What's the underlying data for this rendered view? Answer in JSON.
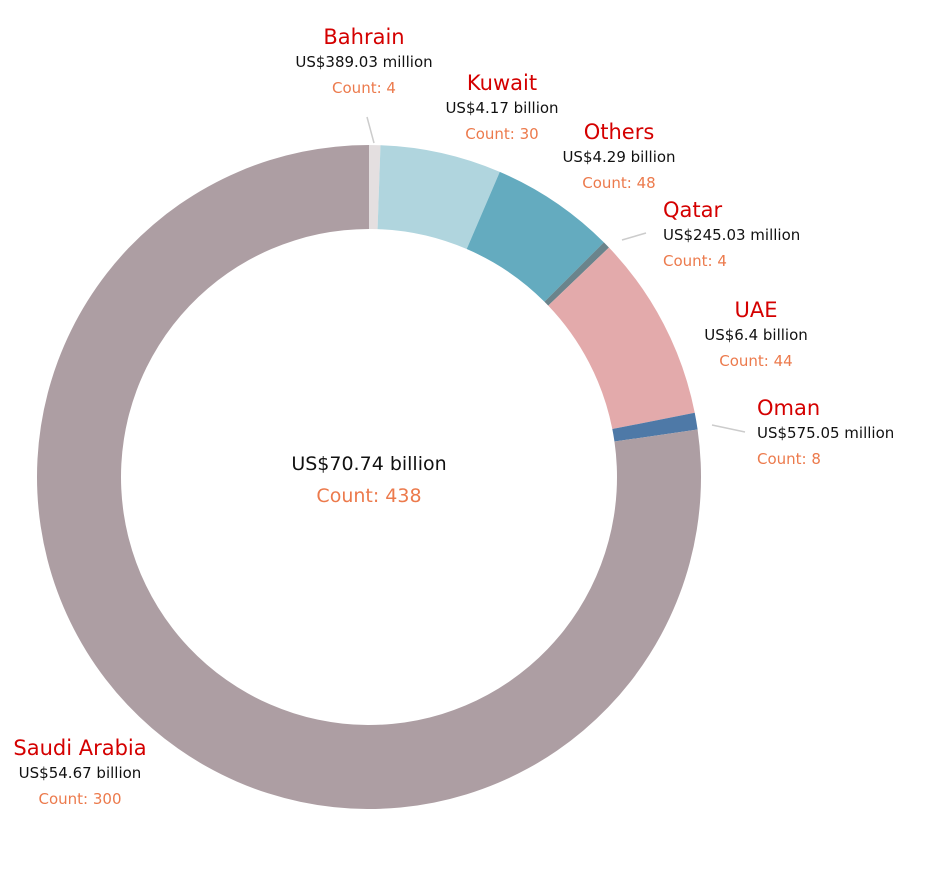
{
  "chart_data": {
    "type": "pie",
    "subtype": "donut",
    "start": "top",
    "direction": "clockwise",
    "center_label": {
      "value": "US$70.74 billion",
      "count": "Count: 438"
    },
    "total": 70.74,
    "slices": [
      {
        "name": "Bahrain",
        "value": 0.38903,
        "value_label": "US$389.03 million",
        "count": 4,
        "count_label": "Count: 4",
        "color": "#e4dfe0"
      },
      {
        "name": "Kuwait",
        "value": 4.17,
        "value_label": "US$4.17 billion",
        "count": 30,
        "count_label": "Count: 30",
        "color": "#b0d5de"
      },
      {
        "name": "Others",
        "value": 4.29,
        "value_label": "US$4.29 billion",
        "count": 48,
        "count_label": "Count: 48",
        "color": "#64abbf"
      },
      {
        "name": "Qatar",
        "value": 0.24503,
        "value_label": "US$245.03 million",
        "count": 4,
        "count_label": "Count: 4",
        "color": "#6a848c"
      },
      {
        "name": "UAE",
        "value": 6.4,
        "value_label": "US$6.4 billion",
        "count": 44,
        "count_label": "Count: 44",
        "color": "#e3aaab"
      },
      {
        "name": "Oman",
        "value": 0.57505,
        "value_label": "US$575.05 million",
        "count": 8,
        "count_label": "Count: 8",
        "color": "#4e79a7"
      },
      {
        "name": "Saudi Arabia",
        "value": 54.67,
        "value_label": "US$54.67 billion",
        "count": 300,
        "count_label": "Count: 300",
        "color": "#ad9ea3"
      }
    ]
  }
}
